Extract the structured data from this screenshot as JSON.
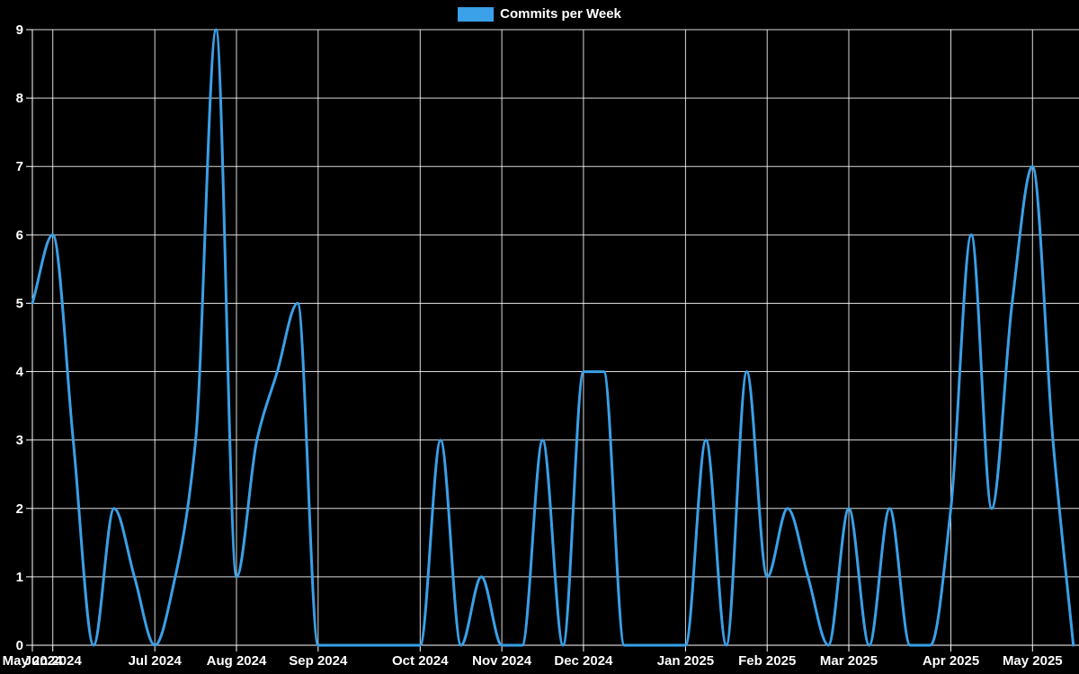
{
  "legend": {
    "label": "Commits per Week"
  },
  "colors": {
    "background": "#000000",
    "line": "#3aa0e8",
    "grid": "rgba(255,255,255,0.85)",
    "axis": "#ffffff",
    "text": "#ffffff"
  },
  "chart_data": {
    "type": "line",
    "title": "",
    "xlabel": "",
    "ylabel": "",
    "legend_position": "top",
    "grid": true,
    "smoothing": "monotone",
    "x_unit": "week",
    "ylim": [
      0,
      9
    ],
    "y_ticks": [
      0,
      1,
      2,
      3,
      4,
      5,
      6,
      7,
      8,
      9
    ],
    "series": [
      {
        "name": "Commits per Week",
        "values": [
          5,
          6,
          3,
          0,
          2,
          1,
          0,
          1,
          3,
          9,
          1,
          3,
          4,
          5,
          0,
          0,
          0,
          0,
          0,
          0,
          3,
          0,
          1,
          0,
          0,
          3,
          0,
          4,
          4,
          0,
          0,
          0,
          0,
          3,
          0,
          4,
          1,
          2,
          1,
          0,
          2,
          0,
          2,
          0,
          0,
          2,
          6,
          2,
          5,
          7,
          3,
          0
        ]
      }
    ],
    "month_ticks": [
      {
        "label": "May 2024",
        "week": 0
      },
      {
        "label": "Jun 2024",
        "week": 1
      },
      {
        "label": "Jul 2024",
        "week": 6
      },
      {
        "label": "Aug 2024",
        "week": 10
      },
      {
        "label": "Sep 2024",
        "week": 14
      },
      {
        "label": "Oct 2024",
        "week": 19
      },
      {
        "label": "Nov 2024",
        "week": 23
      },
      {
        "label": "Dec 2024",
        "week": 27
      },
      {
        "label": "Jan 2025",
        "week": 32
      },
      {
        "label": "Feb 2025",
        "week": 36
      },
      {
        "label": "Mar 2025",
        "week": 40
      },
      {
        "label": "Apr 2025",
        "week": 45
      },
      {
        "label": "May 2025",
        "week": 49
      }
    ]
  }
}
